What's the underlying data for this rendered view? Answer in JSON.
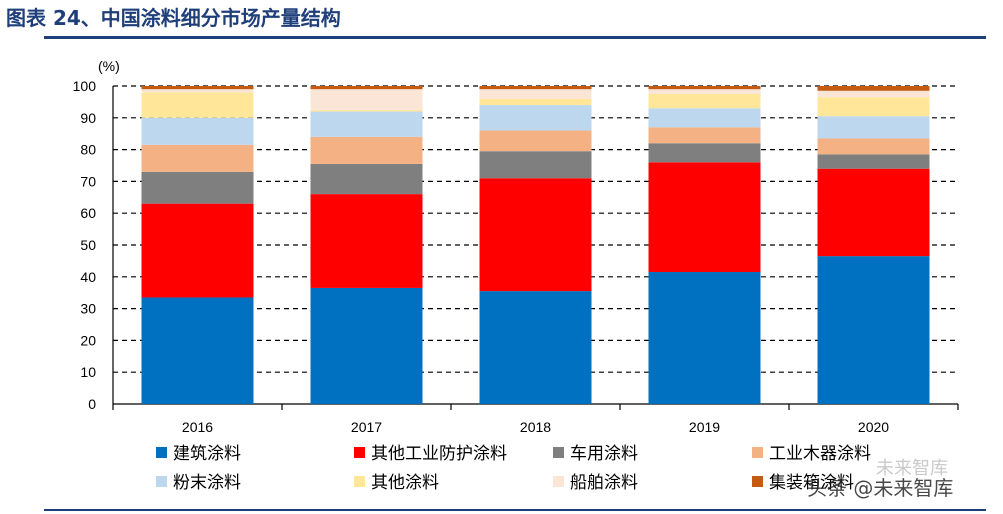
{
  "header": {
    "title": "图表 24、中国涂料细分市场产量结构"
  },
  "watermark": {
    "main": "头条 @未来智库",
    "faint": "未来智库"
  },
  "chart_data": {
    "type": "bar",
    "stacked": true,
    "title": "图表 24、中国涂料细分市场产量结构",
    "ylabel": "(%)",
    "xlabel": "",
    "ylim": [
      0,
      100
    ],
    "yticks": [
      0,
      10,
      20,
      30,
      40,
      50,
      60,
      70,
      80,
      90,
      100
    ],
    "grid": "dashed-horizontal",
    "categories": [
      "2016",
      "2017",
      "2018",
      "2019",
      "2020"
    ],
    "series": [
      {
        "name": "建筑涂料",
        "color": "#0070c0",
        "values": [
          33.5,
          36.5,
          35.5,
          41.5,
          46.5
        ]
      },
      {
        "name": "其他工业防护涂料",
        "color": "#ff0000",
        "values": [
          29.5,
          29.5,
          35.5,
          34.5,
          27.5
        ]
      },
      {
        "name": "车用涂料",
        "color": "#7f7f7f",
        "values": [
          10.0,
          9.5,
          8.5,
          6.0,
          4.5
        ]
      },
      {
        "name": "工业木器涂料",
        "color": "#f4b183",
        "values": [
          8.5,
          8.5,
          6.5,
          5.0,
          5.0
        ]
      },
      {
        "name": "粉末涂料",
        "color": "#bdd7ee",
        "values": [
          8.5,
          8.0,
          8.0,
          6.0,
          7.0
        ]
      },
      {
        "name": "其他涂料",
        "color": "#ffe699",
        "values": [
          8.0,
          0.5,
          2.0,
          4.5,
          6.0
        ]
      },
      {
        "name": "船舶涂料",
        "color": "#fbe5d6",
        "values": [
          1.0,
          6.5,
          3.0,
          1.5,
          2.0
        ]
      },
      {
        "name": "集装箱涂料",
        "color": "#c55a11",
        "values": [
          1.0,
          1.0,
          1.0,
          1.0,
          1.5
        ]
      }
    ],
    "legend": "bottom"
  }
}
